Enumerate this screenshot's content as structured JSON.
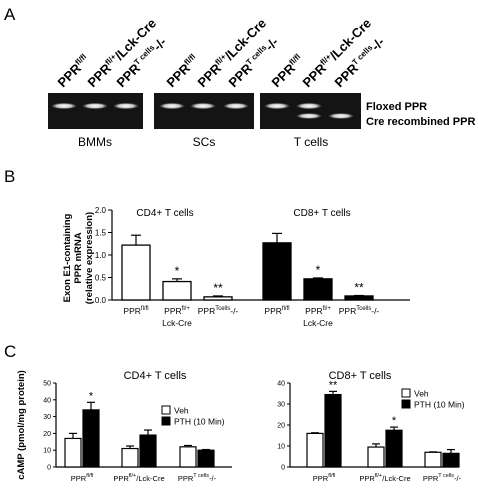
{
  "panels": {
    "a": "A",
    "b": "B",
    "c": "C"
  },
  "gel": {
    "lane_labels": [
      {
        "base": "PPR",
        "sup": "fl/fl",
        "suffix": ""
      },
      {
        "base": "PPR",
        "sup": "fl/+",
        "suffix": "/Lck-Cre"
      },
      {
        "base": "PPR",
        "sup": "T cells",
        "suffix": "-/-"
      },
      {
        "base": "PPR",
        "sup": "fl/fl",
        "suffix": ""
      },
      {
        "base": "PPR",
        "sup": "fl/+",
        "suffix": "/Lck-Cre"
      },
      {
        "base": "PPR",
        "sup": "T cells",
        "suffix": "-/-"
      },
      {
        "base": "PPR",
        "sup": "fl/fl",
        "suffix": ""
      },
      {
        "base": "PPR",
        "sup": "fl/+",
        "suffix": "/Lck-Cre"
      },
      {
        "base": "PPR",
        "sup": "T cells",
        "suffix": "-/-"
      }
    ],
    "groups": [
      "BMMs",
      "SCs",
      "T cells"
    ],
    "band_labels": [
      "Floxed PPR",
      "Cre recombined PPR"
    ],
    "bands": {
      "floxed": [
        1,
        1,
        1,
        1,
        1,
        1,
        1,
        1,
        0
      ],
      "recombined": [
        0,
        0,
        0,
        0,
        0,
        0,
        0,
        1,
        1
      ]
    }
  },
  "chart_data": [
    {
      "type": "bar",
      "panel": "B",
      "ylabel": [
        "Exon E1-containing",
        "PPR mRNA",
        "(relative expression)"
      ],
      "ylim": [
        0,
        2.0
      ],
      "yticks": [
        "0.0",
        "0.5",
        "1.0",
        "1.5",
        "2.0"
      ],
      "groups": [
        {
          "title": "CD4+ T cells",
          "fill": "#ffffff",
          "categories": [
            [
              "PPR^fl/fl"
            ],
            [
              "PPR^fl/+",
              "Lck-Cre"
            ],
            [
              "PPR^Tcells-/-"
            ]
          ],
          "values": [
            1.22,
            0.41,
            0.07
          ],
          "errors": [
            0.22,
            0.06,
            0.02
          ],
          "significance": [
            "",
            "*",
            "**"
          ]
        },
        {
          "title": "CD8+ T cells",
          "fill": "#000000",
          "categories": [
            [
              "PPR^fl/fl"
            ],
            [
              "PPR^fl/+",
              "Lck-Cre"
            ],
            [
              "PPR^Tcells-/-"
            ]
          ],
          "values": [
            1.27,
            0.47,
            0.09
          ],
          "errors": [
            0.21,
            0.02,
            0.01
          ],
          "significance": [
            "",
            "*",
            "**"
          ]
        }
      ]
    },
    {
      "type": "bar",
      "panel": "C-left",
      "title": "CD4+ T cells",
      "ylabel": "cAMP (pmol/mg protein)",
      "ylim": [
        0,
        50
      ],
      "yticks": [
        "0",
        "10",
        "20",
        "30",
        "40",
        "50"
      ],
      "categories": [
        "PPR^fl/fl",
        "PPR^fl/+/Lck-Cre",
        "PPR^T cells-/-"
      ],
      "series": [
        {
          "name": "Veh",
          "fill": "#ffffff",
          "values": [
            17,
            11,
            12
          ],
          "errors": [
            3,
            1.5,
            0.8
          ],
          "significance": [
            "",
            "",
            ""
          ]
        },
        {
          "name": "PTH (10 Min)",
          "fill": "#000000",
          "values": [
            34,
            19,
            10
          ],
          "errors": [
            4.5,
            3,
            0.4
          ],
          "significance": [
            "*",
            "",
            ""
          ]
        }
      ],
      "legend_position": "top-right"
    },
    {
      "type": "bar",
      "panel": "C-right",
      "title": "CD8+ T cells",
      "ylim": [
        0,
        40
      ],
      "yticks": [
        "0",
        "10",
        "20",
        "30",
        "40"
      ],
      "categories": [
        "PPR^fl/fl",
        "PPR^fl/+/Lck-Cre",
        "PPR^T cells-/-"
      ],
      "series": [
        {
          "name": "Veh",
          "fill": "#ffffff",
          "values": [
            16,
            9.5,
            7
          ],
          "errors": [
            0.3,
            1.5,
            0.2
          ],
          "significance": [
            "",
            "",
            ""
          ]
        },
        {
          "name": "PTH (10 Min)",
          "fill": "#000000",
          "values": [
            34.5,
            17.5,
            6.5
          ],
          "errors": [
            1.5,
            1.5,
            1.8
          ],
          "significance": [
            "**",
            "*",
            ""
          ]
        }
      ],
      "legend_position": "top-right"
    }
  ]
}
